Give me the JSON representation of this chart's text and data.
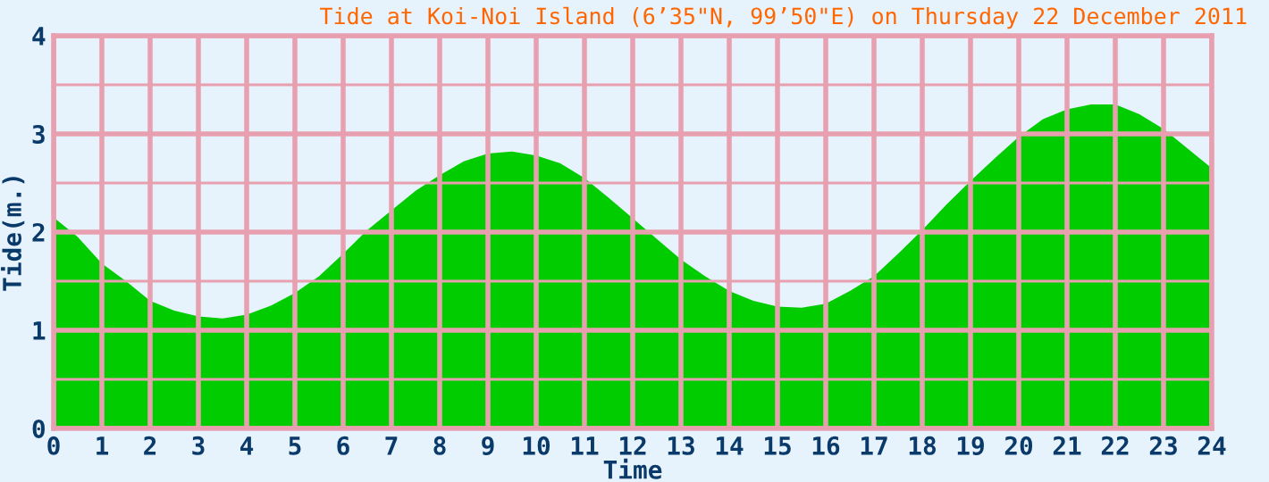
{
  "chart_data": {
    "type": "area",
    "title": "Tide at Koi-Noi Island (6’35\"N, 99’50\"E) on Thursday 22 December 2011",
    "xlabel": "Time",
    "ylabel": "Tide(m.)",
    "x": [
      0,
      0.5,
      1,
      1.5,
      2,
      2.5,
      3,
      3.5,
      4,
      4.5,
      5,
      5.5,
      6,
      6.5,
      7,
      7.5,
      8,
      8.5,
      9,
      9.5,
      10,
      10.5,
      11,
      11.5,
      12,
      12.5,
      13,
      13.5,
      14,
      14.5,
      15,
      15.5,
      16,
      16.5,
      17,
      17.5,
      18,
      18.5,
      19,
      19.5,
      20,
      20.5,
      21,
      21.5,
      22,
      22.5,
      23,
      23.5,
      24
    ],
    "series": [
      {
        "color": "#00cc00",
        "values": [
          2.15,
          1.95,
          1.68,
          1.5,
          1.3,
          1.2,
          1.14,
          1.12,
          1.16,
          1.25,
          1.38,
          1.55,
          1.78,
          2.02,
          2.22,
          2.42,
          2.58,
          2.72,
          2.8,
          2.82,
          2.78,
          2.7,
          2.55,
          2.35,
          2.14,
          1.93,
          1.72,
          1.55,
          1.4,
          1.3,
          1.24,
          1.23,
          1.27,
          1.4,
          1.55,
          1.78,
          2.02,
          2.28,
          2.52,
          2.75,
          2.97,
          3.15,
          3.25,
          3.3,
          3.3,
          3.2,
          3.05,
          2.85,
          2.65
        ]
      }
    ],
    "xlim": [
      0,
      24
    ],
    "xticks": [
      0,
      1,
      2,
      3,
      4,
      5,
      6,
      7,
      8,
      9,
      10,
      11,
      12,
      13,
      14,
      15,
      16,
      17,
      18,
      19,
      20,
      21,
      22,
      23,
      24
    ],
    "ylim": [
      0,
      4
    ],
    "yticks": [
      0,
      {
        "value": 0.5,
        "label": null
      },
      1,
      {
        "value": 1.5,
        "label": null
      },
      2,
      {
        "value": 2.5,
        "label": null
      },
      3,
      {
        "value": 3.5,
        "label": null
      },
      4
    ],
    "grid": true
  }
}
